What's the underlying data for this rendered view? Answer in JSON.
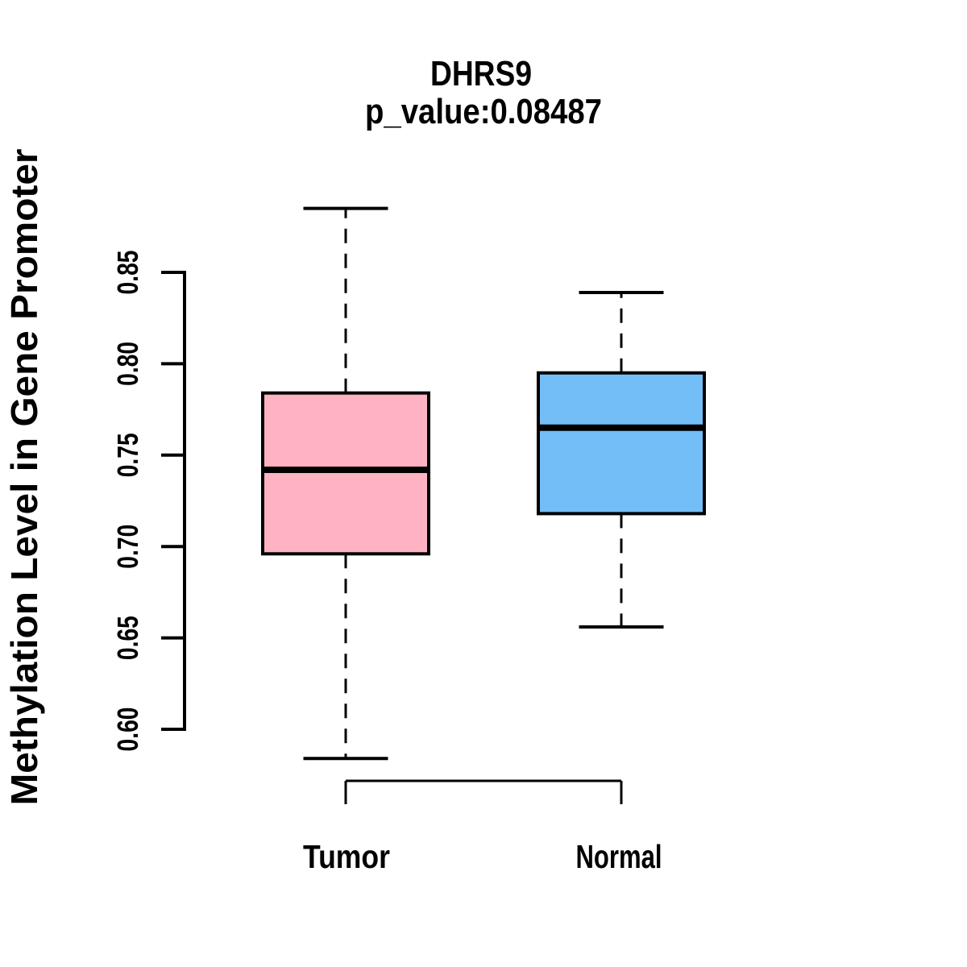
{
  "chart_data": {
    "type": "boxplot",
    "title": "DHRS9",
    "subtitle": "p_value:0.08487",
    "ylabel": "Methylation Level in Gene Promoter",
    "xlabel": "",
    "categories": [
      "Tumor",
      "Normal"
    ],
    "ytick_labels": [
      "0.60",
      "0.65",
      "0.70",
      "0.75",
      "0.80",
      "0.85"
    ],
    "ylim": [
      0.584,
      0.885
    ],
    "grid": false,
    "legend": "none",
    "series": [
      {
        "name": "Tumor",
        "fill": "#FFB2C2",
        "stats": {
          "lower_whisker": 0.584,
          "q1": 0.696,
          "median": 0.742,
          "q3": 0.784,
          "upper_whisker": 0.885
        }
      },
      {
        "name": "Normal",
        "fill": "#74BEF7",
        "stats": {
          "lower_whisker": 0.656,
          "q1": 0.718,
          "median": 0.765,
          "q3": 0.795,
          "upper_whisker": 0.839
        }
      }
    ],
    "stroke_color": "#000000",
    "background_color": "#FFFFFF"
  }
}
